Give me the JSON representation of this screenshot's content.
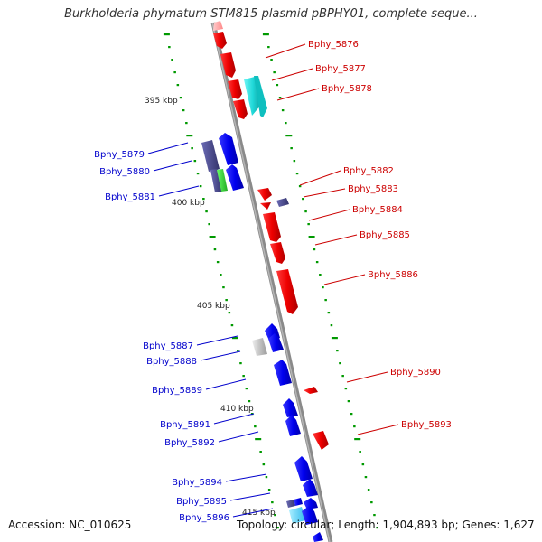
{
  "title": "Burkholderia phymatum STM815 plasmid pBPHY01, complete seque...",
  "footer": {
    "accession": "Accession: NC_010625",
    "topology": "Topology: circular; Length: 1,904,893 bp; Genes: 1,627"
  },
  "colors": {
    "forward": "#ff0000",
    "reverse": "#0000ff",
    "backbone": "#808080",
    "tick": "#009900",
    "label_forward": "#cc0000",
    "label_reverse": "#0000cc"
  },
  "ruler": [
    "395 kbp",
    "400 kbp",
    "405 kbp",
    "410 kbp",
    "415 kbp"
  ],
  "genes_forward": [
    "Bphy_5876",
    "Bphy_5877",
    "Bphy_5878",
    "Bphy_5882",
    "Bphy_5883",
    "Bphy_5884",
    "Bphy_5885",
    "Bphy_5886",
    "Bphy_5890",
    "Bphy_5893"
  ],
  "genes_reverse": [
    "Bphy_5879",
    "Bphy_5880",
    "Bphy_5881",
    "Bphy_5887",
    "Bphy_5888",
    "Bphy_5889",
    "Bphy_5891",
    "Bphy_5892",
    "Bphy_5894",
    "Bphy_5895",
    "Bphy_5896"
  ]
}
